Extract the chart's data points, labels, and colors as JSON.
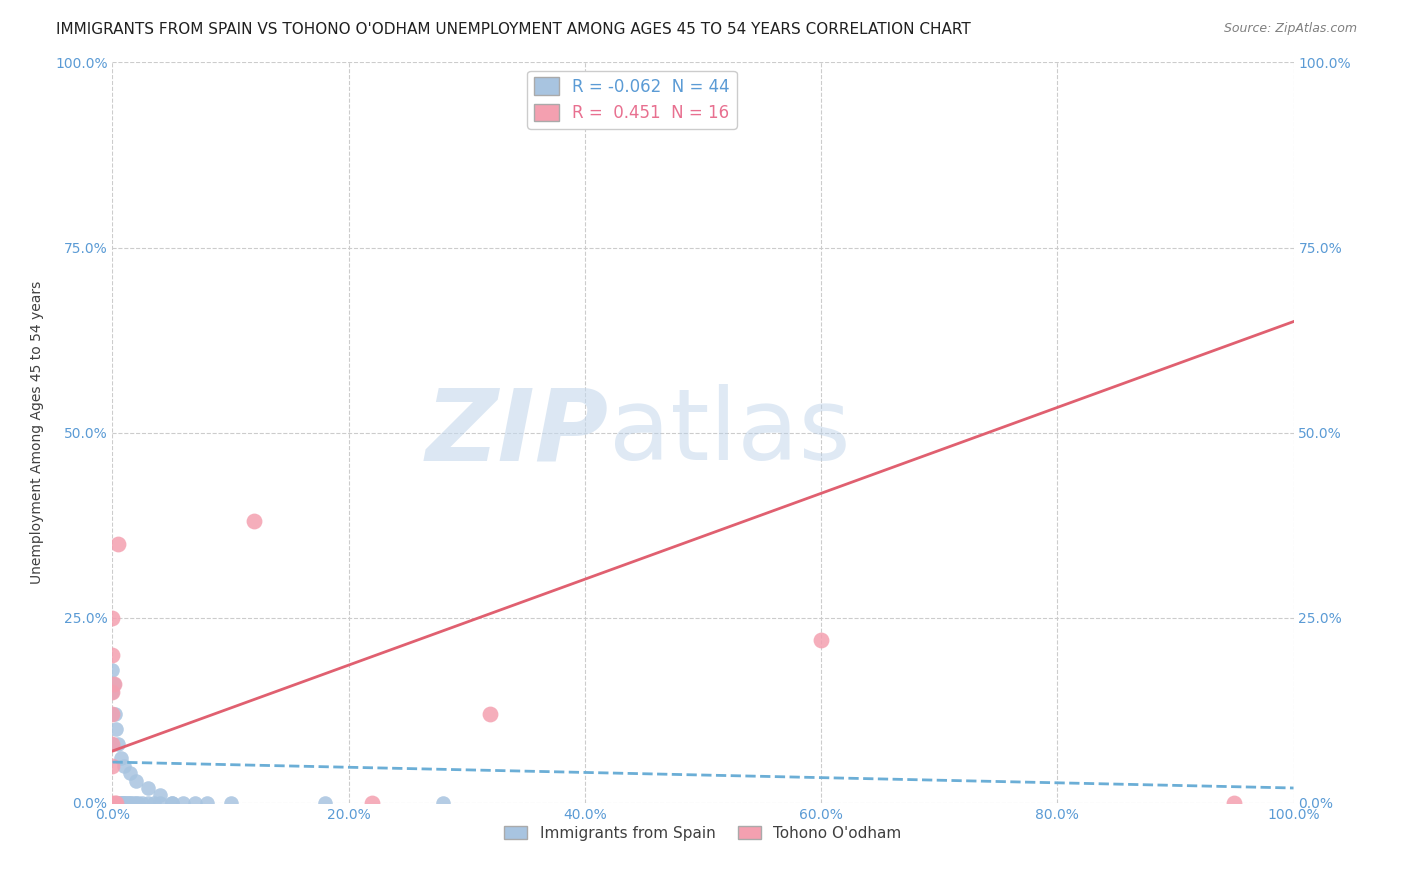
{
  "title": "IMMIGRANTS FROM SPAIN VS TOHONO O'ODHAM UNEMPLOYMENT AMONG AGES 45 TO 54 YEARS CORRELATION CHART",
  "source": "Source: ZipAtlas.com",
  "ylabel": "Unemployment Among Ages 45 to 54 years",
  "watermark_zip": "ZIP",
  "watermark_atlas": "atlas",
  "legend_entry1": "R = -0.062  N = 44",
  "legend_entry2": "R =  0.451  N = 16",
  "blue_color": "#a8c4e0",
  "pink_color": "#f4a0b0",
  "blue_scatter_x": [
    0.001,
    0.002,
    0.003,
    0.004,
    0.005,
    0.006,
    0.007,
    0.008,
    0.009,
    0.01,
    0.011,
    0.012,
    0.013,
    0.015,
    0.016,
    0.018,
    0.02,
    0.022,
    0.025,
    0.03,
    0.035,
    0.04,
    0.05,
    0.06,
    0.07,
    0.08,
    0.1,
    0.0,
    0.0,
    0.0,
    0.0,
    0.001,
    0.002,
    0.003,
    0.005,
    0.007,
    0.01,
    0.015,
    0.02,
    0.03,
    0.04,
    0.05,
    0.18,
    0.28
  ],
  "blue_scatter_y": [
    0.0,
    0.0,
    0.0,
    0.0,
    0.0,
    0.0,
    0.0,
    0.0,
    0.0,
    0.0,
    0.0,
    0.0,
    0.0,
    0.0,
    0.0,
    0.0,
    0.0,
    0.0,
    0.0,
    0.0,
    0.0,
    0.0,
    0.0,
    0.0,
    0.0,
    0.0,
    0.0,
    0.18,
    0.12,
    0.08,
    0.15,
    0.16,
    0.12,
    0.1,
    0.08,
    0.06,
    0.05,
    0.04,
    0.03,
    0.02,
    0.01,
    0.0,
    0.0,
    0.0
  ],
  "pink_scatter_x": [
    0.0,
    0.0,
    0.0,
    0.0,
    0.0,
    0.001,
    0.002,
    0.003,
    0.005,
    0.22,
    0.32,
    0.95,
    0.12,
    0.6,
    0.0,
    0.0
  ],
  "pink_scatter_y": [
    0.12,
    0.15,
    0.05,
    0.08,
    0.2,
    0.16,
    0.0,
    0.0,
    0.35,
    0.0,
    0.12,
    0.0,
    0.38,
    0.22,
    0.25,
    0.0
  ],
  "xlim": [
    0.0,
    1.0
  ],
  "ylim": [
    0.0,
    1.0
  ],
  "xtick_values": [
    0.0,
    0.2,
    0.4,
    0.6,
    0.8,
    1.0
  ],
  "xtick_labels": [
    "0.0%",
    "20.0%",
    "40.0%",
    "60.0%",
    "80.0%",
    "100.0%"
  ],
  "ytick_values": [
    0.0,
    0.25,
    0.5,
    0.75,
    1.0
  ],
  "ytick_labels": [
    "0.0%",
    "25.0%",
    "50.0%",
    "75.0%",
    "100.0%"
  ],
  "right_ytick_labels": [
    "0.0%",
    "25.0%",
    "50.0%",
    "75.0%",
    "100.0%"
  ],
  "blue_trend_y0": 0.055,
  "blue_trend_y1": 0.02,
  "pink_trend_y0": 0.07,
  "pink_trend_y1": 0.65,
  "grid_color": "#cccccc",
  "bg_color": "#ffffff",
  "title_fontsize": 11,
  "tick_fontsize": 10,
  "source_fontsize": 9
}
